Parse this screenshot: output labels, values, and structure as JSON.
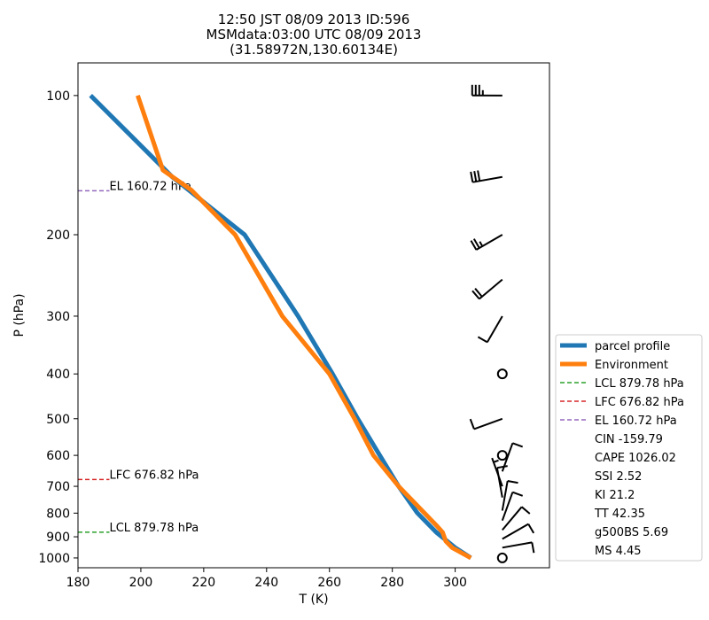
{
  "chart_data": {
    "type": "line",
    "title_lines": [
      "12:50 JST 08/09 2013  ID:596",
      "MSMdata:03:00 UTC 08/09 2013",
      "(31.58972N,130.60134E)"
    ],
    "xlabel": "T (K)",
    "ylabel": "P (hPa)",
    "xlim": [
      180,
      330
    ],
    "ylim": [
      1050,
      85
    ],
    "yscale": "log",
    "x_ticks": [
      180,
      200,
      220,
      240,
      260,
      280,
      300
    ],
    "x_tick_labels": [
      "180",
      "200",
      "220",
      "240",
      "260",
      "280",
      "300"
    ],
    "y_ticks": [
      100,
      200,
      300,
      400,
      500,
      600,
      700,
      800,
      900,
      1000
    ],
    "y_tick_labels": [
      "100",
      "200",
      "300",
      "400",
      "500",
      "600",
      "700",
      "800",
      "900",
      "1000"
    ],
    "series": [
      {
        "name": "parcel profile",
        "color": "#1f77b4",
        "points": [
          [
            305,
            1000
          ],
          [
            300,
            950
          ],
          [
            294,
            880
          ],
          [
            288,
            800
          ],
          [
            282,
            700
          ],
          [
            276,
            600
          ],
          [
            269,
            500
          ],
          [
            261,
            400
          ],
          [
            250,
            300
          ],
          [
            233,
            200
          ],
          [
            210,
            150
          ],
          [
            184,
            100
          ]
        ]
      },
      {
        "name": "Environment",
        "color": "#ff7f0e",
        "points": [
          [
            305,
            1000
          ],
          [
            299,
            950
          ],
          [
            297,
            920
          ],
          [
            296,
            880
          ],
          [
            294,
            850
          ],
          [
            282,
            700
          ],
          [
            274,
            600
          ],
          [
            268,
            500
          ],
          [
            260,
            400
          ],
          [
            245,
            300
          ],
          [
            230,
            200
          ],
          [
            216,
            160
          ],
          [
            207,
            145
          ],
          [
            199,
            100
          ]
        ]
      }
    ],
    "levels": [
      {
        "name": "LCL 879.78 hPa",
        "label": "LCL 879.78 hPa",
        "p": 879.78,
        "color": "#2ca02c"
      },
      {
        "name": "LFC 676.82 hPa",
        "label": "LFC 676.82 hPa",
        "p": 676.82,
        "color": "#d62728"
      },
      {
        "name": "EL 160.72 hPa",
        "label": "EL 160.72 hPa",
        "p": 160.72,
        "color": "#9467bd"
      }
    ],
    "indices": [
      "CIN -159.79",
      "CAPE 1026.02",
      "SSI 2.52",
      "KI 21.2",
      "TT 42.35",
      "g500BS 5.69",
      "MS 4.45"
    ],
    "legend_position": "lower-right-outside",
    "wind_barbs": {
      "x": 315,
      "levels": [
        {
          "p": 100,
          "dir": 270,
          "speed": 35
        },
        {
          "p": 150,
          "dir": 260,
          "speed": 30
        },
        {
          "p": 200,
          "dir": 240,
          "speed": 25
        },
        {
          "p": 250,
          "dir": 230,
          "speed": 20
        },
        {
          "p": 300,
          "dir": 210,
          "speed": 10
        },
        {
          "p": 400,
          "dir": 0,
          "speed": 0
        },
        {
          "p": 500,
          "dir": 250,
          "speed": 10
        },
        {
          "p": 600,
          "dir": 0,
          "speed": 0
        },
        {
          "p": 650,
          "dir": 20,
          "speed": 10
        },
        {
          "p": 700,
          "dir": 340,
          "speed": 5
        },
        {
          "p": 740,
          "dir": 350,
          "speed": 10
        },
        {
          "p": 790,
          "dir": 10,
          "speed": 10
        },
        {
          "p": 830,
          "dir": 20,
          "speed": 10
        },
        {
          "p": 870,
          "dir": 40,
          "speed": 10
        },
        {
          "p": 910,
          "dir": 60,
          "speed": 10
        },
        {
          "p": 950,
          "dir": 80,
          "speed": 10
        },
        {
          "p": 1000,
          "dir": 0,
          "speed": 0
        }
      ]
    }
  }
}
